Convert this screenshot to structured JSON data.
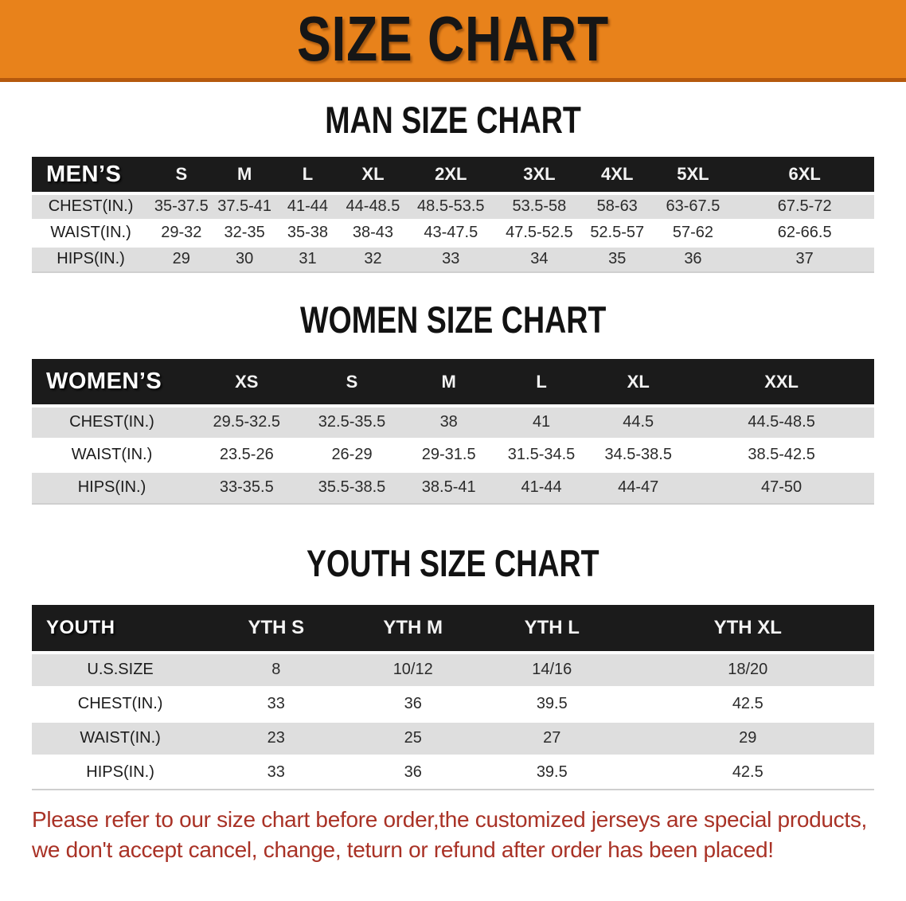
{
  "banner": {
    "title": "SIZE CHART",
    "bg_color": "#E8821B",
    "border_color": "#B5590D"
  },
  "sections": [
    {
      "heading": "MAN SIZE CHART",
      "table": {
        "label": "MEN’S",
        "columns": [
          "S",
          "M",
          "L",
          "XL",
          "2XL",
          "3XL",
          "4XL",
          "5XL",
          "6XL"
        ],
        "rows": [
          {
            "label": "CHEST(IN.)",
            "values": [
              "35-37.5",
              "37.5-41",
              "41-44",
              "44-48.5",
              "48.5-53.5",
              "53.5-58",
              "58-63",
              "63-67.5",
              "67.5-72"
            ]
          },
          {
            "label": "WAIST(IN.)",
            "values": [
              "29-32",
              "32-35",
              "35-38",
              "38-43",
              "43-47.5",
              "47.5-52.5",
              "52.5-57",
              "57-62",
              "62-66.5"
            ]
          },
          {
            "label": "HIPS(IN.)",
            "values": [
              "29",
              "30",
              "31",
              "32",
              "33",
              "34",
              "35",
              "36",
              "37"
            ]
          }
        ]
      }
    },
    {
      "heading": "WOMEN SIZE CHART",
      "table": {
        "label": "WOMEN’S",
        "columns": [
          "XS",
          "S",
          "M",
          "L",
          "XL",
          "XXL"
        ],
        "rows": [
          {
            "label": "CHEST(IN.)",
            "values": [
              "29.5-32.5",
              "32.5-35.5",
              "38",
              "41",
              "44.5",
              "44.5-48.5"
            ]
          },
          {
            "label": "WAIST(IN.)",
            "values": [
              "23.5-26",
              "26-29",
              "29-31.5",
              "31.5-34.5",
              "34.5-38.5",
              "38.5-42.5"
            ]
          },
          {
            "label": "HIPS(IN.)",
            "values": [
              "33-35.5",
              "35.5-38.5",
              "38.5-41",
              "41-44",
              "44-47",
              "47-50"
            ]
          }
        ]
      }
    },
    {
      "heading": "YOUTH SIZE CHART",
      "table": {
        "label": "YOUTH",
        "columns": [
          "YTH S",
          "YTH M",
          "YTH L",
          "YTH XL"
        ],
        "rows": [
          {
            "label": "U.S.SIZE",
            "values": [
              "8",
              "10/12",
              "14/16",
              "18/20"
            ]
          },
          {
            "label": "CHEST(IN.)",
            "values": [
              "33",
              "36",
              "39.5",
              "42.5"
            ]
          },
          {
            "label": "WAIST(IN.)",
            "values": [
              "23",
              "25",
              "27",
              "29"
            ]
          },
          {
            "label": "HIPS(IN.)",
            "values": [
              "33",
              "36",
              "39.5",
              "42.5"
            ]
          }
        ]
      }
    }
  ],
  "disclaimer": {
    "line1": "Please refer to our size chart before order,the customized jerseys are special products,",
    "line2": "we don't accept cancel, change, teturn or refund after order has been placed!",
    "color": "#A93226"
  }
}
